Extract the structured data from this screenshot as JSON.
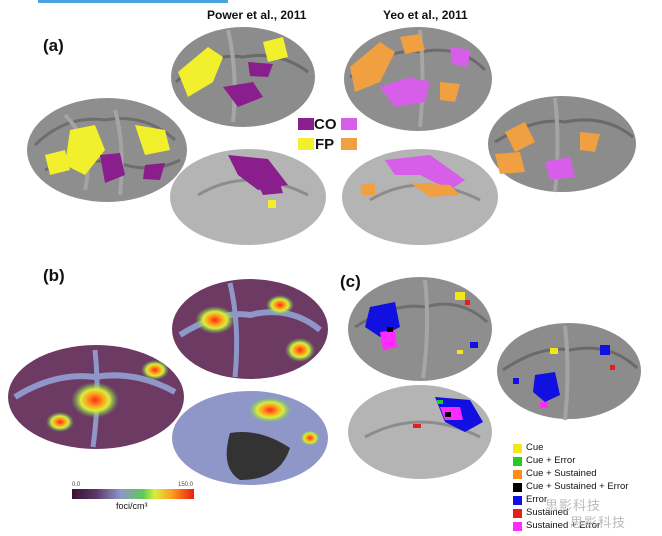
{
  "panels": {
    "a": "(a)",
    "b": "(b)",
    "c": "(c)"
  },
  "headings": {
    "power": "Power et al., 2011",
    "yeo": "Yeo et al., 2011"
  },
  "network_key": {
    "co": "CO",
    "fp": "FP",
    "colors": {
      "co_power": "#8a1e8c",
      "co_yeo": "#d65ee8",
      "fp_power": "#f2ef2c",
      "fp_yeo": "#f0a040"
    }
  },
  "colorbar": {
    "min": "0.0",
    "max": "150.0",
    "unit": "foci/cm³"
  },
  "legend": [
    {
      "label": "Cue",
      "color": "#f5e617"
    },
    {
      "label": "Cue + Error",
      "color": "#22cc22"
    },
    {
      "label": "Cue + Sustained",
      "color": "#ff8c1a"
    },
    {
      "label": "Cue + Sustained + Error",
      "color": "#000000"
    },
    {
      "label": "Error",
      "color": "#1010e0"
    },
    {
      "label": "Sustained",
      "color": "#e61e1e"
    },
    {
      "label": "Sustained + Error",
      "color": "#ff2aff"
    }
  ],
  "watermark": "思影科技"
}
